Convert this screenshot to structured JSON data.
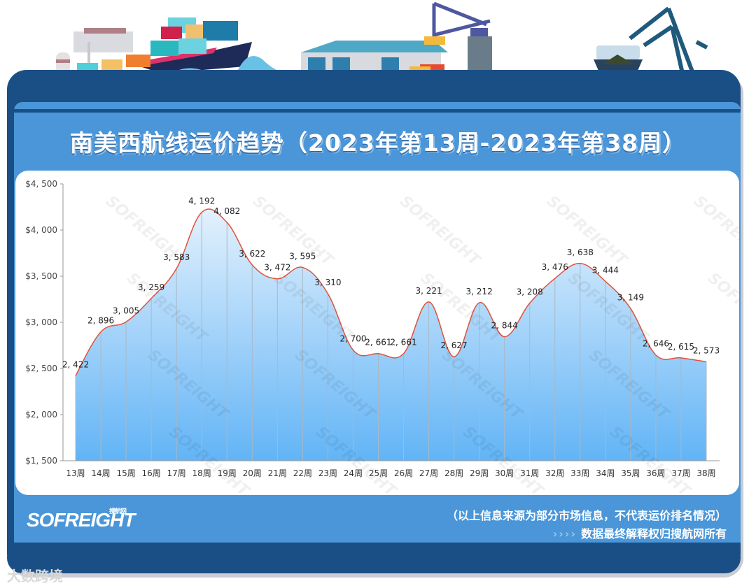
{
  "header": {
    "title": "南美西航线运价趋势（2023年第13周-2023年第38周）"
  },
  "chart_data": {
    "type": "area",
    "title": "南美西航线运价趋势（2023年第13周-2023年第38周）",
    "xlabel": "",
    "ylabel": "",
    "categories": [
      "13周",
      "14周",
      "15周",
      "16周",
      "17周",
      "18周",
      "19周",
      "20周",
      "21周",
      "22周",
      "23周",
      "24周",
      "25周",
      "26周",
      "27周",
      "28周",
      "29周",
      "30周",
      "31周",
      "32周",
      "33周",
      "34周",
      "35周",
      "36周",
      "37周",
      "38周"
    ],
    "values": [
      2422,
      2896,
      3005,
      3259,
      3583,
      4192,
      4082,
      3622,
      3472,
      3595,
      3310,
      2700,
      2661,
      2661,
      3221,
      2627,
      3212,
      2844,
      3208,
      3476,
      3638,
      3444,
      3149,
      2646,
      2615,
      2573
    ],
    "value_labels": [
      "2, 422",
      "2, 896",
      "3, 005",
      "3, 259",
      "3, 583",
      "4, 192",
      "4, 082",
      "3, 622",
      "3, 472",
      "3, 595",
      "3, 310",
      "2, 700",
      "2, 661",
      "2, 661",
      "3, 221",
      "2, 627",
      "3, 212",
      "2, 844",
      "3, 208",
      "3, 476",
      "3, 638",
      "3, 444",
      "3, 149",
      "2, 646",
      "2, 615",
      "2, 573"
    ],
    "yticks": [
      1500,
      2000,
      2500,
      3000,
      3500,
      4000,
      4500
    ],
    "ytick_labels": [
      "$1, 500",
      "$2, 000",
      "$2, 500",
      "$3, 000",
      "$3, 500",
      "$4, 000",
      "$4, 500"
    ],
    "ylim": [
      1500,
      4500
    ],
    "grid": "vertical drop lines at each point",
    "legend": "none",
    "colors": {
      "line": "#e0523a",
      "fill_top": "#d9ecfc",
      "fill_bottom": "#62b4f6",
      "drop_line": "#a9b8c6"
    }
  },
  "footer": {
    "logo": "SOFREIGHT",
    "logo_sub": "搜航网",
    "note": "（以上信息来源为部分市场信息，不代表运价排名情况）",
    "arrows": "››››",
    "rights": "数据最终解释权归搜航网所有",
    "watermark": "大数跨境"
  },
  "watermark": "SOFREIGHT",
  "colors": {
    "frame": "#1a4f86",
    "panel": "#4a96d8",
    "card": "#ffffff"
  }
}
